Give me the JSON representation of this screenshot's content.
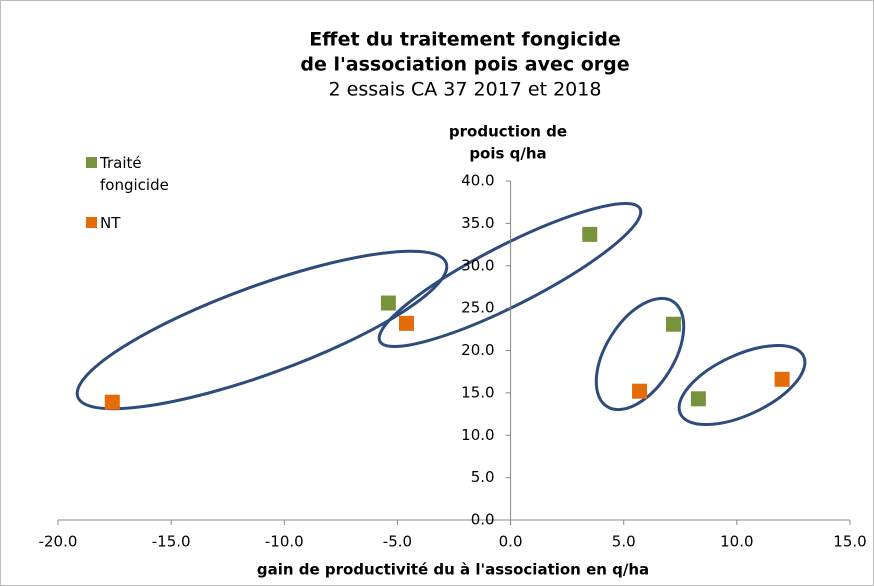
{
  "chart_data": {
    "type": "scatter",
    "title": [
      "Effet du traitement fongicide",
      "de l'association pois avec orge"
    ],
    "subtitle": "2 essais CA 37  2017 et 2018",
    "ylabel": [
      "production de",
      "pois q/ha"
    ],
    "xlabel": "gain de productivité du à l'association en q/ha",
    "series": [
      {
        "name": "Traité fongicide",
        "color": "#77933c",
        "x": [
          -5.4,
          3.5,
          7.2,
          8.3
        ],
        "values": [
          25.6,
          33.7,
          23.1,
          14.3
        ]
      },
      {
        "name": "NT",
        "color": "#e36c09",
        "x": [
          -17.6,
          -4.6,
          5.7,
          12.0
        ],
        "values": [
          13.9,
          23.2,
          15.2,
          16.6
        ]
      }
    ],
    "xlim": [
      -20,
      15
    ],
    "xticks": [
      {
        "value": -20,
        "label": "-20.0"
      },
      {
        "value": -15,
        "label": "-15.0"
      },
      {
        "value": -10,
        "label": "-10.0"
      },
      {
        "value": -5,
        "label": "-5.0"
      },
      {
        "value": 0,
        "label": "0.0"
      },
      {
        "value": 5,
        "label": "5.0"
      },
      {
        "value": 10,
        "label": "10.0"
      },
      {
        "value": 15,
        "label": "15.0"
      }
    ],
    "ylim": [
      0,
      40
    ],
    "yticks": [
      {
        "value": 0,
        "label": "0.0"
      },
      {
        "value": 5,
        "label": "5.0"
      },
      {
        "value": 10,
        "label": "10.0"
      },
      {
        "value": 15,
        "label": "15.0"
      },
      {
        "value": 20,
        "label": "20.0"
      },
      {
        "value": 25,
        "label": "25.0"
      },
      {
        "value": 30,
        "label": "30.0"
      },
      {
        "value": 35,
        "label": "35.0"
      },
      {
        "value": 40,
        "label": "40.0"
      }
    ],
    "legend": "top-left"
  }
}
